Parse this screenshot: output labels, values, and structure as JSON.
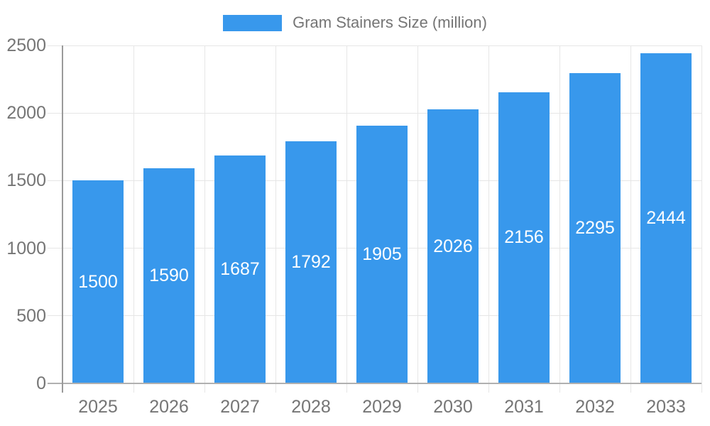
{
  "chart_data": {
    "type": "bar",
    "title": "Gram Stainers Size (million)",
    "legend": {
      "position": "top",
      "label": "Gram Stainers Size (million)"
    },
    "categories": [
      "2025",
      "2026",
      "2027",
      "2028",
      "2029",
      "2030",
      "2031",
      "2032",
      "2033"
    ],
    "values": [
      1500,
      1590,
      1687,
      1792,
      1905,
      2026,
      2156,
      2295,
      2444
    ],
    "series": [
      {
        "name": "Gram Stainers Size (million)",
        "values": [
          1500,
          1590,
          1687,
          1792,
          1905,
          2026,
          2156,
          2295,
          2444
        ]
      }
    ],
    "xlabel": "",
    "ylabel": "",
    "ylim": [
      0,
      2500
    ],
    "yticks": [
      0,
      500,
      1000,
      1500,
      2000,
      2500
    ],
    "grid": true,
    "value_labels": "inside-center",
    "colors": {
      "bar": "#3898ec",
      "bar_label_text": "#ffffff",
      "axis_text": "#757575",
      "gridline": "#e6e6e6",
      "baseline": "#b0b0b0",
      "axis_line": "#9a9a9a",
      "background": "#ffffff"
    }
  }
}
